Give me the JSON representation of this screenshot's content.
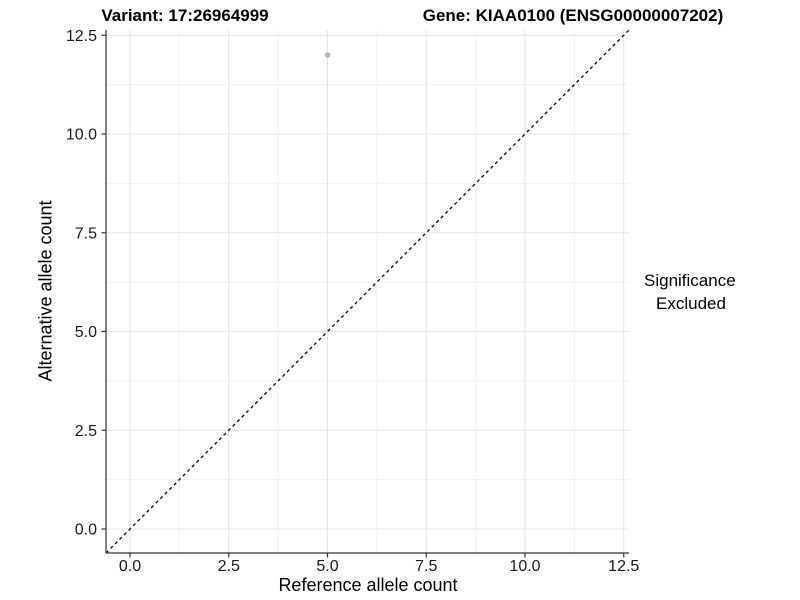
{
  "header": {
    "variant_title": "Variant: 17:26964999",
    "gene_title": "Gene: KIAA0100 (ENSG00000007202)"
  },
  "chart_data": {
    "type": "scatter",
    "title": "Variant: 17:26964999    Gene: KIAA0100 (ENSG00000007202)",
    "xlabel": "Reference allele count",
    "ylabel": "Alternative allele count",
    "x_tick_labels": [
      "0.0",
      "2.5",
      "5.0",
      "7.5",
      "10.0",
      "12.5"
    ],
    "y_tick_labels": [
      "0.0",
      "2.5",
      "5.0",
      "7.5",
      "10.0",
      "12.5"
    ],
    "tick_values": [
      0,
      2.5,
      5,
      7.5,
      10,
      12.5
    ],
    "minor_tick_values": [
      1.25,
      3.75,
      6.25,
      8.75,
      11.25
    ],
    "xlim": [
      -0.61,
      12.63
    ],
    "ylim": [
      -0.61,
      12.63
    ],
    "grid": "major+minor",
    "points": [
      {
        "x": 5,
        "y": 12,
        "significance": "Excluded"
      }
    ],
    "reference_line": {
      "kind": "identity y=x",
      "style": "dashed",
      "color": "#000000",
      "x1": -0.61,
      "y1": -0.61,
      "x2": 12.63,
      "y2": 12.63
    },
    "legend": {
      "title": "Significance",
      "position": "right",
      "entries": [
        {
          "label": "Excluded",
          "marker": "circle",
          "color": "#b5b5b5"
        }
      ]
    },
    "colors": {
      "point_excluded": "#b5b5b5",
      "grid_major": "#e4e4e4",
      "grid_minor": "#f1f1f1",
      "axis_line": "#333333",
      "tick_label": "#1a1a1a"
    }
  }
}
